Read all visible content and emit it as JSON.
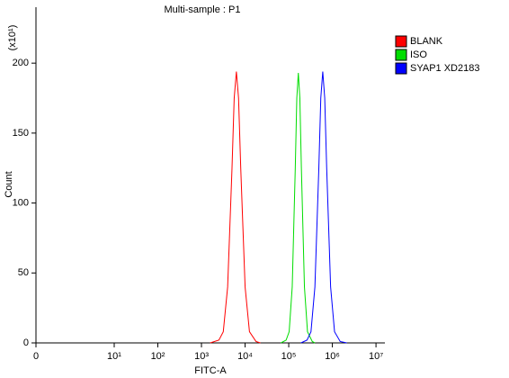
{
  "chart_data": {
    "type": "line",
    "title": "Multi-sample : P1",
    "x_label": "FITC-A",
    "y_label": "Count",
    "y_multiplier": "(x10¹)",
    "xscale": "symlog",
    "xlim": [
      0,
      16000000
    ],
    "xticks": [
      0,
      {
        "value": 10,
        "label": "10¹"
      },
      {
        "value": 100,
        "label": "10²"
      },
      {
        "value": 1000,
        "label": "10³"
      },
      {
        "value": 10000,
        "label": "10⁴"
      },
      {
        "value": 100000,
        "label": "10⁵"
      },
      {
        "value": 1000000,
        "label": "10⁶"
      },
      {
        "value": 10000000,
        "label": "10⁷"
      }
    ],
    "ylim": [
      0,
      240
    ],
    "yticks": [
      0,
      50,
      100,
      150,
      200
    ],
    "legend": "right",
    "series": [
      {
        "name": "BLANK",
        "color": "#ff0000",
        "x": [
          1585,
          2512,
          3162,
          3981,
          5012,
          5623,
          6310,
          7079,
          7943,
          10000,
          12589,
          17783,
          22387
        ],
        "values": [
          0,
          2,
          8,
          40,
          125,
          175,
          194,
          175,
          125,
          40,
          8,
          1,
          0
        ]
      },
      {
        "name": "ISO",
        "color": "#00dd00",
        "x": [
          66069,
          87096,
          102329,
          120226,
          141254,
          153109,
          165959,
          179887,
          194984,
          229087,
          269153,
          346737,
          398107
        ],
        "values": [
          0,
          2,
          8,
          40,
          125,
          175,
          193,
          175,
          125,
          40,
          8,
          1,
          0
        ]
      },
      {
        "name": "SYAP1 XD2183",
        "color": "#0000ff",
        "x": [
          190546,
          263027,
          323594,
          398107,
          489779,
          543250,
          602560,
          668344,
          741310,
          912011,
          1122018,
          1513561,
          2137962
        ],
        "values": [
          0,
          2,
          8,
          40,
          125,
          175,
          194,
          175,
          125,
          40,
          8,
          1,
          0
        ]
      }
    ]
  }
}
